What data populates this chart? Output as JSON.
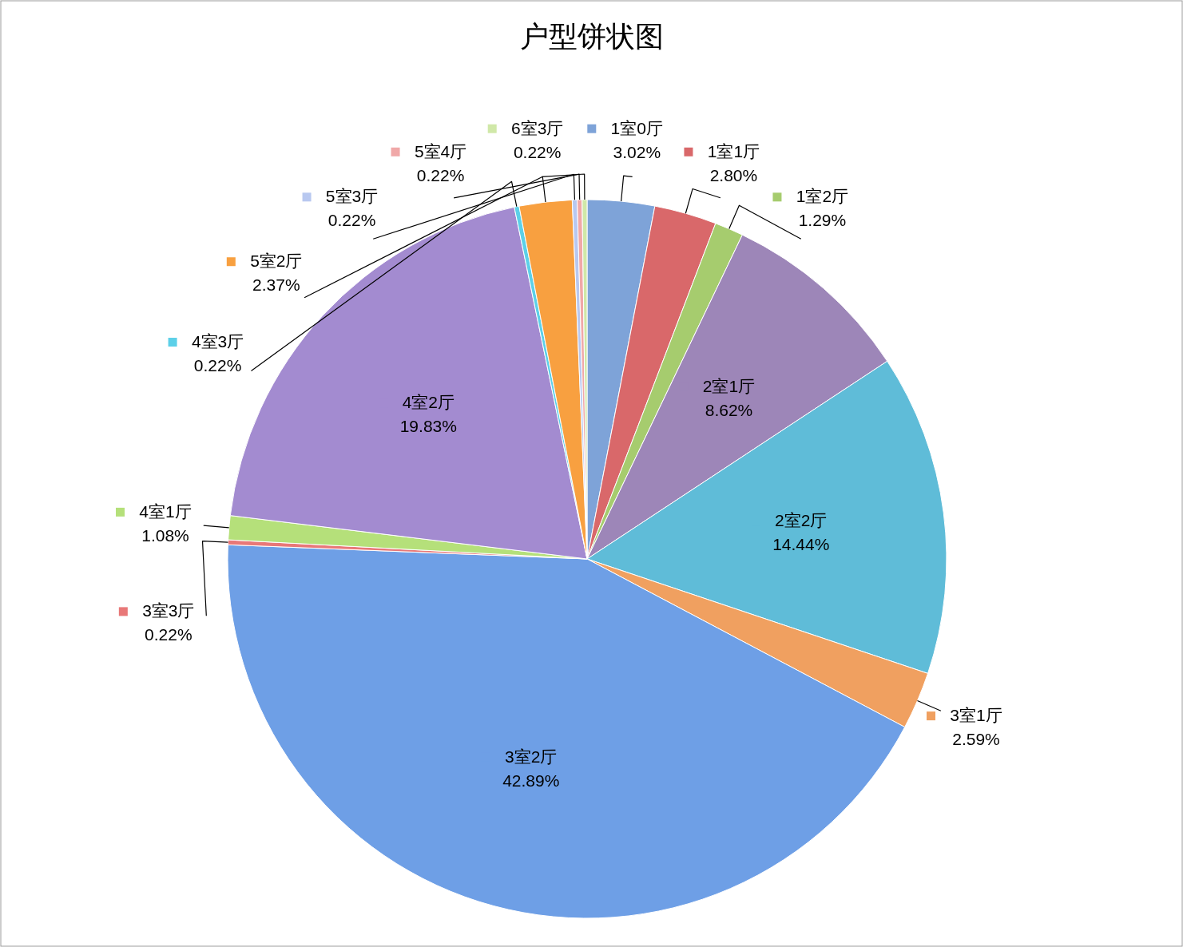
{
  "chart_data": {
    "type": "pie",
    "title": "户型饼状图",
    "categories": [
      "1室0厅",
      "1室1厅",
      "1室2厅",
      "2室1厅",
      "2室2厅",
      "3室1厅",
      "3室2厅",
      "3室3厅",
      "4室1厅",
      "4室2厅",
      "4室3厅",
      "5室2厅",
      "5室3厅",
      "5室4厅",
      "6室3厅"
    ],
    "values": [
      3.02,
      2.8,
      1.29,
      8.62,
      14.44,
      2.59,
      42.89,
      0.22,
      1.08,
      19.83,
      0.22,
      2.37,
      0.22,
      0.22,
      0.22
    ],
    "colors": [
      "#7ea3d8",
      "#d9686a",
      "#a6cc6e",
      "#9d86b8",
      "#5fbcd8",
      "#f0a060",
      "#6e9fe6",
      "#e87878",
      "#b5e07a",
      "#a38bd0",
      "#5cd0e8",
      "#f8a040",
      "#b8c8f0",
      "#f0a8a8",
      "#d0e8a8"
    ],
    "value_labels": [
      "3.02%",
      "2.80%",
      "1.29%",
      "8.62%",
      "14.44%",
      "2.59%",
      "42.89%",
      "0.22%",
      "1.08%",
      "19.83%",
      "0.22%",
      "2.37%",
      "0.22%",
      "0.22%",
      "0.22%"
    ],
    "legend": "top"
  }
}
